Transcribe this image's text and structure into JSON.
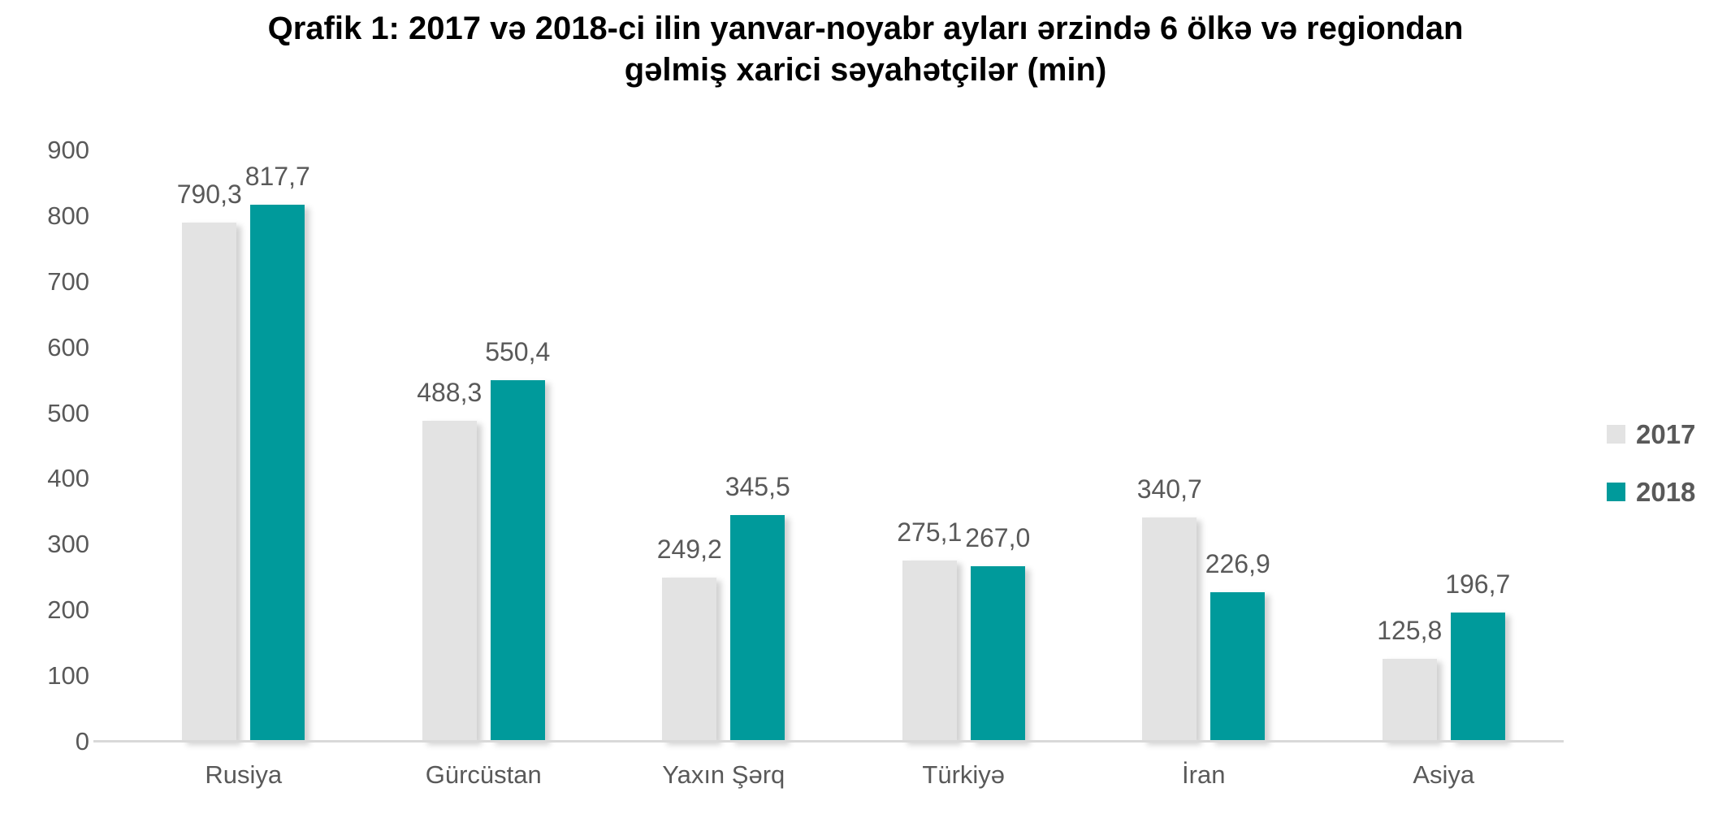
{
  "chart_data": {
    "type": "bar",
    "title": "Qrafik 1: 2017 və 2018-ci ilin yanvar-noyabr ayları ərzində 6 ölkə və regiondan gəlmiş xarici səyahətçilər (min)",
    "title_lines": [
      "Qrafik 1: 2017 və 2018-ci ilin yanvar-noyabr ayları ərzində 6 ölkə və regiondan",
      "gəlmiş xarici səyahətçilər (min)"
    ],
    "categories": [
      "Rusiya",
      "Gürcüstan",
      "Yaxın Şərq",
      "Türkiyə",
      "İran",
      "Asiya"
    ],
    "series": [
      {
        "name": "2017",
        "color": "#e3e3e3",
        "values": [
          790.3,
          488.3,
          249.2,
          275.1,
          340.7,
          125.8
        ],
        "labels": [
          "790,3",
          "488,3",
          "249,2",
          "275,1",
          "340,7",
          "125,8"
        ]
      },
      {
        "name": "2018",
        "color": "#009a9b",
        "values": [
          817.7,
          550.4,
          345.5,
          267.0,
          226.9,
          196.7
        ],
        "labels": [
          "817,7",
          "550,4",
          "345,5",
          "267,0",
          "226,9",
          "196,7"
        ]
      }
    ],
    "ylim": [
      0,
      900
    ],
    "yticks": [
      0,
      100,
      200,
      300,
      400,
      500,
      600,
      700,
      800,
      900
    ],
    "grid": false,
    "legend_position": "right",
    "decimal_separator": ","
  },
  "colors": {
    "bar_2017": "#e3e3e3",
    "bar_2018": "#009a9b",
    "axis_line": "#d9d9d9",
    "label_text": "#595959",
    "title_text": "#000000",
    "background": "#ffffff"
  }
}
